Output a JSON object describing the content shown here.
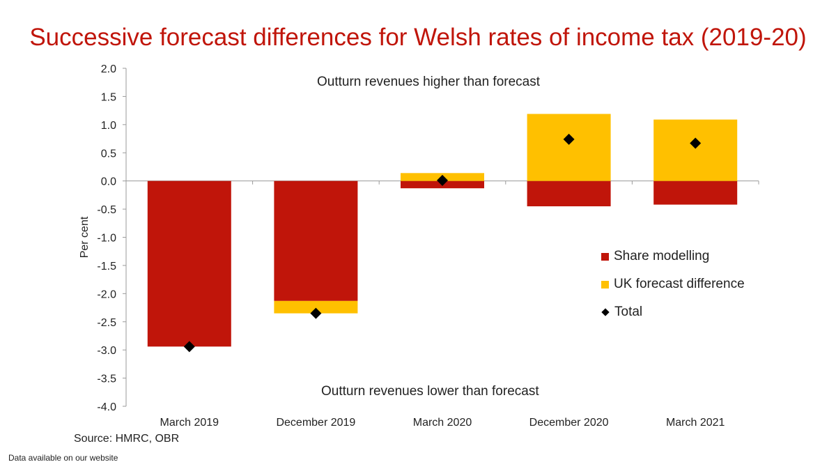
{
  "title": "Successive forecast differences for Welsh rates of income tax (2019-20)",
  "source": "Source: HMRC, OBR",
  "footnote": "Data available on our website",
  "chart_data": {
    "type": "bar",
    "stacked": true,
    "title": "Successive forecast differences for Welsh rates of income tax (2019-20)",
    "ylabel": "Per cent",
    "xlabel": "",
    "ylim": [
      -4.0,
      2.0
    ],
    "yticks": [
      2.0,
      1.5,
      1.0,
      0.5,
      0.0,
      -0.5,
      -1.0,
      -1.5,
      -2.0,
      -2.5,
      -3.0,
      -3.5,
      -4.0
    ],
    "ytick_labels": [
      "2.0",
      "1.5",
      "1.0",
      "0.5",
      "0.0",
      "-0.5",
      "-1.0",
      "-1.5",
      "-2.0",
      "-2.5",
      "-3.0",
      "-3.5",
      "-4.0"
    ],
    "categories": [
      "March 2019",
      "December 2019",
      "March 2020",
      "December 2020",
      "March 2021"
    ],
    "series": [
      {
        "name": "Share modelling",
        "kind": "bar",
        "color": "#c0150a",
        "values": [
          -2.94,
          -2.13,
          -0.13,
          -0.45,
          -0.42
        ]
      },
      {
        "name": "UK forecast difference",
        "kind": "bar",
        "color": "#ffc000",
        "values": [
          0.0,
          -0.22,
          0.14,
          1.19,
          1.09
        ]
      },
      {
        "name": "Total",
        "kind": "marker",
        "marker": "diamond",
        "color": "#000000",
        "values": [
          -2.94,
          -2.35,
          0.01,
          0.74,
          0.67
        ]
      }
    ],
    "annotations": {
      "top": "Outturn revenues higher than forecast",
      "bottom": "Outturn revenues lower than forecast"
    },
    "legend_position": "right"
  }
}
